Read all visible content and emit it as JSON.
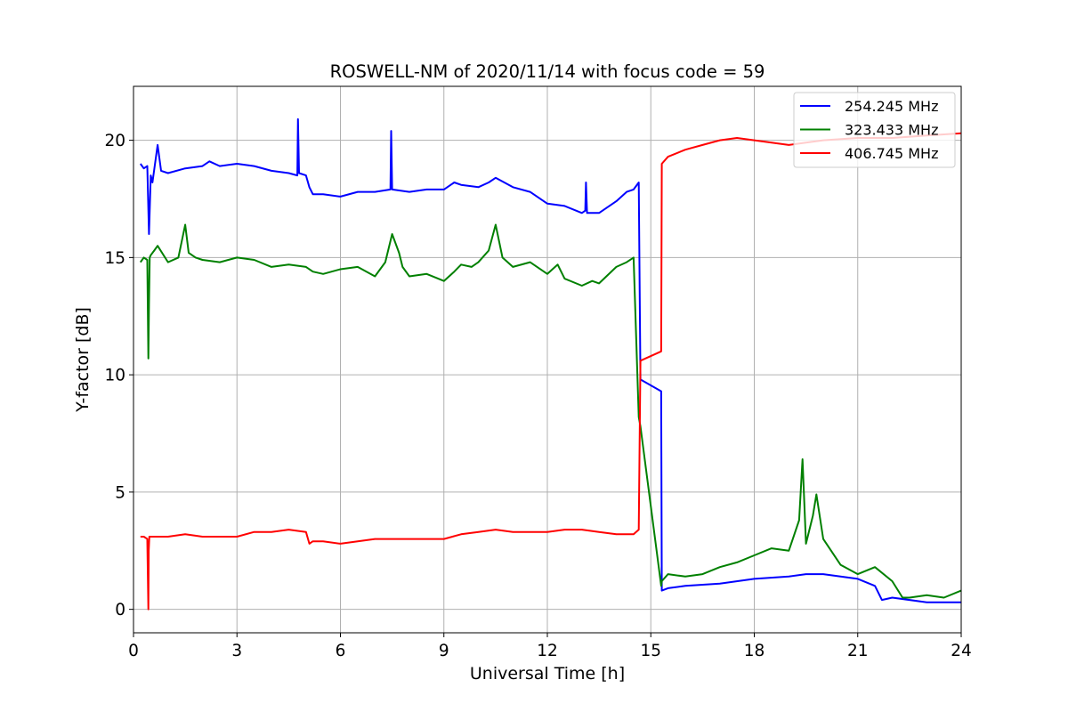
{
  "chart_data": {
    "type": "line",
    "title": "ROSWELL-NM of 2020/11/14 with focus code = 59",
    "xlabel": "Universal Time [h]",
    "ylabel": "Y-factor [dB]",
    "xlim": [
      0,
      24
    ],
    "ylim": [
      -1,
      22.3
    ],
    "xticks": [
      0,
      3,
      6,
      9,
      12,
      15,
      18,
      21,
      24
    ],
    "xtick_labels": [
      "0",
      "3",
      "6",
      "9",
      "12",
      "15",
      "18",
      "21",
      "24"
    ],
    "yticks": [
      0,
      5,
      10,
      15,
      20
    ],
    "ytick_labels": [
      "0",
      "5",
      "10",
      "15",
      "20"
    ],
    "grid": true,
    "legend_position": "top-right",
    "series": [
      {
        "name": "254.245 MHz",
        "color": "#0000ff",
        "x": [
          0.2,
          0.3,
          0.4,
          0.45,
          0.5,
          0.55,
          0.7,
          0.8,
          1.0,
          1.5,
          2.0,
          2.2,
          2.5,
          3.0,
          3.5,
          4.0,
          4.5,
          4.75,
          4.77,
          4.8,
          5.0,
          5.1,
          5.2,
          5.5,
          6.0,
          6.5,
          7.0,
          7.45,
          7.47,
          7.5,
          8.0,
          8.5,
          9.0,
          9.3,
          9.5,
          10.0,
          10.3,
          10.5,
          11.0,
          11.5,
          12.0,
          12.5,
          13.0,
          13.1,
          13.12,
          13.15,
          13.5,
          14.0,
          14.3,
          14.5,
          14.65,
          14.7,
          15.3,
          15.32,
          15.5,
          16.0,
          17.0,
          18.0,
          19.0,
          19.5,
          20.0,
          21.0,
          21.5,
          21.7,
          22.0,
          23.0,
          23.5,
          24.0
        ],
        "y": [
          19.0,
          18.8,
          18.9,
          16.0,
          18.5,
          18.2,
          19.8,
          18.7,
          18.6,
          18.8,
          18.9,
          19.1,
          18.9,
          19.0,
          18.9,
          18.7,
          18.6,
          18.5,
          20.9,
          18.6,
          18.5,
          18.0,
          17.7,
          17.7,
          17.6,
          17.8,
          17.8,
          17.9,
          20.4,
          17.9,
          17.8,
          17.9,
          17.9,
          18.2,
          18.1,
          18.0,
          18.2,
          18.4,
          18.0,
          17.8,
          17.3,
          17.2,
          16.9,
          17.0,
          18.2,
          16.9,
          16.9,
          17.4,
          17.8,
          17.9,
          18.2,
          9.8,
          9.3,
          0.8,
          0.9,
          1.0,
          1.1,
          1.3,
          1.4,
          1.5,
          1.5,
          1.3,
          1.0,
          0.4,
          0.5,
          0.3,
          0.3,
          0.3
        ]
      },
      {
        "name": "323.433 MHz",
        "color": "#008000",
        "x": [
          0.2,
          0.3,
          0.4,
          0.43,
          0.45,
          0.47,
          0.5,
          0.6,
          0.7,
          1.0,
          1.3,
          1.5,
          1.6,
          1.8,
          2.0,
          2.5,
          3.0,
          3.5,
          4.0,
          4.5,
          5.0,
          5.2,
          5.5,
          6.0,
          6.5,
          7.0,
          7.3,
          7.5,
          7.7,
          7.8,
          8.0,
          8.5,
          9.0,
          9.3,
          9.5,
          9.8,
          10.0,
          10.3,
          10.5,
          10.7,
          11.0,
          11.5,
          12.0,
          12.3,
          12.5,
          13.0,
          13.3,
          13.5,
          14.0,
          14.3,
          14.5,
          14.65,
          14.7,
          15.3,
          15.32,
          15.5,
          16.0,
          16.5,
          17.0,
          17.5,
          18.0,
          18.5,
          19.0,
          19.3,
          19.4,
          19.5,
          19.7,
          19.8,
          20.0,
          20.5,
          21.0,
          21.5,
          22.0,
          22.3,
          22.5,
          23.0,
          23.5,
          24.0
        ],
        "y": [
          14.8,
          15.0,
          14.9,
          10.7,
          13.0,
          15.0,
          15.1,
          15.3,
          15.5,
          14.8,
          15.0,
          16.4,
          15.2,
          15.0,
          14.9,
          14.8,
          15.0,
          14.9,
          14.6,
          14.7,
          14.6,
          14.4,
          14.3,
          14.5,
          14.6,
          14.2,
          14.8,
          16.0,
          15.2,
          14.6,
          14.2,
          14.3,
          14.0,
          14.4,
          14.7,
          14.6,
          14.8,
          15.3,
          16.4,
          15.0,
          14.6,
          14.8,
          14.3,
          14.7,
          14.1,
          13.8,
          14.0,
          13.9,
          14.6,
          14.8,
          15.0,
          8.2,
          7.8,
          1.0,
          1.2,
          1.5,
          1.4,
          1.5,
          1.8,
          2.0,
          2.3,
          2.6,
          2.5,
          3.8,
          6.4,
          2.8,
          4.0,
          4.9,
          3.0,
          1.9,
          1.5,
          1.8,
          1.2,
          0.5,
          0.5,
          0.6,
          0.5,
          0.8
        ]
      },
      {
        "name": "406.745 MHz",
        "color": "#ff0000",
        "x": [
          0.2,
          0.3,
          0.4,
          0.43,
          0.44,
          0.46,
          0.5,
          1.0,
          1.5,
          2.0,
          2.5,
          3.0,
          3.5,
          4.0,
          4.5,
          5.0,
          5.1,
          5.2,
          5.5,
          6.0,
          6.5,
          7.0,
          7.5,
          8.0,
          8.5,
          9.0,
          9.5,
          10.0,
          10.5,
          11.0,
          11.5,
          12.0,
          12.5,
          13.0,
          13.5,
          14.0,
          14.5,
          14.65,
          14.7,
          15.3,
          15.32,
          15.5,
          16.0,
          16.5,
          17.0,
          17.5,
          18.0,
          18.5,
          19.0,
          19.5,
          20.0,
          21.0,
          22.0,
          23.0,
          24.0
        ],
        "y": [
          3.1,
          3.1,
          3.0,
          0.0,
          2.5,
          3.1,
          3.1,
          3.1,
          3.2,
          3.1,
          3.1,
          3.1,
          3.3,
          3.3,
          3.4,
          3.3,
          2.8,
          2.9,
          2.9,
          2.8,
          2.9,
          3.0,
          3.0,
          3.0,
          3.0,
          3.0,
          3.2,
          3.3,
          3.4,
          3.3,
          3.3,
          3.3,
          3.4,
          3.4,
          3.3,
          3.2,
          3.2,
          3.4,
          10.6,
          11.0,
          19.0,
          19.3,
          19.6,
          19.8,
          20.0,
          20.1,
          20.0,
          19.9,
          19.8,
          19.9,
          20.0,
          20.1,
          20.1,
          20.2,
          20.3
        ]
      }
    ]
  }
}
